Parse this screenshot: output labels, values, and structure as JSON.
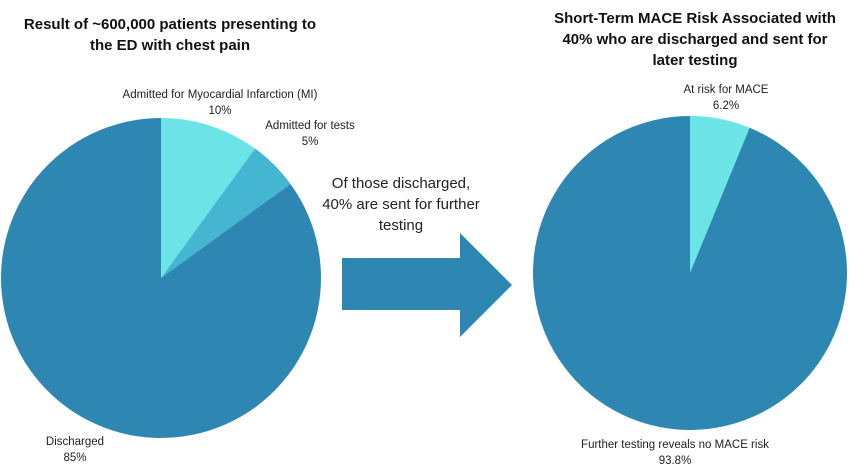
{
  "chart_data": [
    {
      "type": "pie",
      "title": "Result of ~600,000 patients presenting to the ED with chest pain",
      "slices": [
        {
          "label": "Admitted for Myocardial Infarction (MI)",
          "value": 10,
          "value_label": "10%",
          "color": "#6ce3e6"
        },
        {
          "label": "Admitted for tests",
          "value": 5,
          "value_label": "5%",
          "color": "#45b6d2"
        },
        {
          "label": "Discharged",
          "value": 85,
          "value_label": "85%",
          "color": "#2e87b3"
        }
      ]
    },
    {
      "type": "pie",
      "title": "Short-Term MACE Risk Associated with 40% who are discharged and sent for later testing",
      "slices": [
        {
          "label": "At risk for MACE",
          "value": 6.2,
          "value_label": "6.2%",
          "color": "#6ce3e6"
        },
        {
          "label": "Further testing reveals no MACE risk",
          "value": 93.8,
          "value_label": "93.8%",
          "color": "#2e87b3"
        }
      ]
    }
  ],
  "arrow": {
    "text": "Of those discharged, 40% are sent for further testing",
    "color": "#2e87b3"
  }
}
